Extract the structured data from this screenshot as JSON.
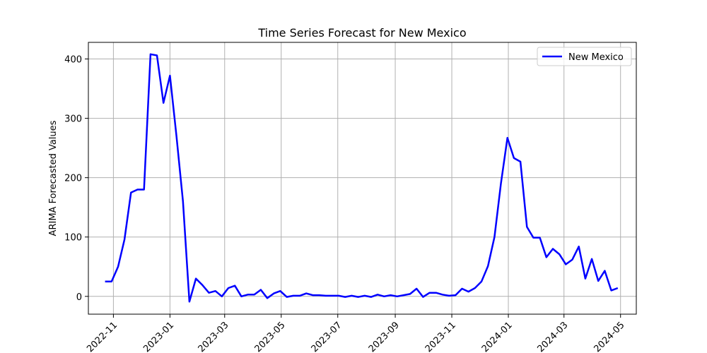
{
  "chart_data": {
    "type": "line",
    "title": "Time Series Forecast for New Mexico",
    "xlabel": "",
    "ylabel": "ARIMA Forecasted Values",
    "xlim": [
      "2022-10-05",
      "2024-05-18"
    ],
    "ylim": [
      -30,
      428
    ],
    "x_ticks": [
      "2022-11",
      "2023-01",
      "2023-03",
      "2023-05",
      "2023-07",
      "2023-09",
      "2023-11",
      "2024-01",
      "2024-03",
      "2024-05"
    ],
    "y_ticks": [
      0,
      100,
      200,
      300,
      400
    ],
    "grid": true,
    "legend_position": "top-right",
    "series": [
      {
        "name": "New Mexico",
        "color": "#0000ff",
        "points": [
          [
            "2022-10-23",
            25
          ],
          [
            "2022-10-30",
            25
          ],
          [
            "2022-11-06",
            50
          ],
          [
            "2022-11-13",
            96
          ],
          [
            "2022-11-20",
            175
          ],
          [
            "2022-11-27",
            180
          ],
          [
            "2022-12-04",
            180
          ],
          [
            "2022-12-11",
            408
          ],
          [
            "2022-12-18",
            406
          ],
          [
            "2022-12-25",
            326
          ],
          [
            "2023-01-01",
            372
          ],
          [
            "2023-01-08",
            270
          ],
          [
            "2023-01-15",
            160
          ],
          [
            "2023-01-22",
            -9
          ],
          [
            "2023-01-29",
            30
          ],
          [
            "2023-02-05",
            19
          ],
          [
            "2023-02-12",
            6
          ],
          [
            "2023-02-19",
            9
          ],
          [
            "2023-02-26",
            0
          ],
          [
            "2023-03-05",
            14
          ],
          [
            "2023-03-12",
            18
          ],
          [
            "2023-03-19",
            0
          ],
          [
            "2023-03-26",
            3
          ],
          [
            "2023-04-02",
            3
          ],
          [
            "2023-04-09",
            11
          ],
          [
            "2023-04-16",
            -3
          ],
          [
            "2023-04-23",
            5
          ],
          [
            "2023-04-30",
            9
          ],
          [
            "2023-05-07",
            -1
          ],
          [
            "2023-05-14",
            1
          ],
          [
            "2023-05-21",
            1
          ],
          [
            "2023-05-28",
            5
          ],
          [
            "2023-06-04",
            2
          ],
          [
            "2023-06-11",
            2
          ],
          [
            "2023-06-18",
            1
          ],
          [
            "2023-06-25",
            1
          ],
          [
            "2023-07-02",
            1
          ],
          [
            "2023-07-09",
            -1
          ],
          [
            "2023-07-16",
            1
          ],
          [
            "2023-07-23",
            -1
          ],
          [
            "2023-07-30",
            1
          ],
          [
            "2023-08-06",
            -1
          ],
          [
            "2023-08-13",
            3
          ],
          [
            "2023-08-20",
            0
          ],
          [
            "2023-08-27",
            2
          ],
          [
            "2023-09-03",
            0
          ],
          [
            "2023-09-10",
            2
          ],
          [
            "2023-09-17",
            4
          ],
          [
            "2023-09-24",
            13
          ],
          [
            "2023-10-01",
            -1
          ],
          [
            "2023-10-08",
            6
          ],
          [
            "2023-10-15",
            6
          ],
          [
            "2023-10-22",
            3
          ],
          [
            "2023-10-29",
            1
          ],
          [
            "2023-11-05",
            2
          ],
          [
            "2023-11-12",
            13
          ],
          [
            "2023-11-19",
            8
          ],
          [
            "2023-11-26",
            14
          ],
          [
            "2023-12-03",
            25
          ],
          [
            "2023-12-10",
            51
          ],
          [
            "2023-12-17",
            100
          ],
          [
            "2023-12-24",
            190
          ],
          [
            "2023-12-31",
            267
          ],
          [
            "2024-01-07",
            233
          ],
          [
            "2024-01-14",
            227
          ],
          [
            "2024-01-21",
            117
          ],
          [
            "2024-01-28",
            99
          ],
          [
            "2024-02-04",
            99
          ],
          [
            "2024-02-11",
            66
          ],
          [
            "2024-02-18",
            80
          ],
          [
            "2024-02-25",
            71
          ],
          [
            "2024-03-03",
            54
          ],
          [
            "2024-03-10",
            62
          ],
          [
            "2024-03-17",
            84
          ],
          [
            "2024-03-24",
            30
          ],
          [
            "2024-03-31",
            63
          ],
          [
            "2024-04-07",
            26
          ],
          [
            "2024-04-14",
            43
          ],
          [
            "2024-04-21",
            10
          ],
          [
            "2024-04-28",
            14
          ]
        ]
      }
    ]
  }
}
